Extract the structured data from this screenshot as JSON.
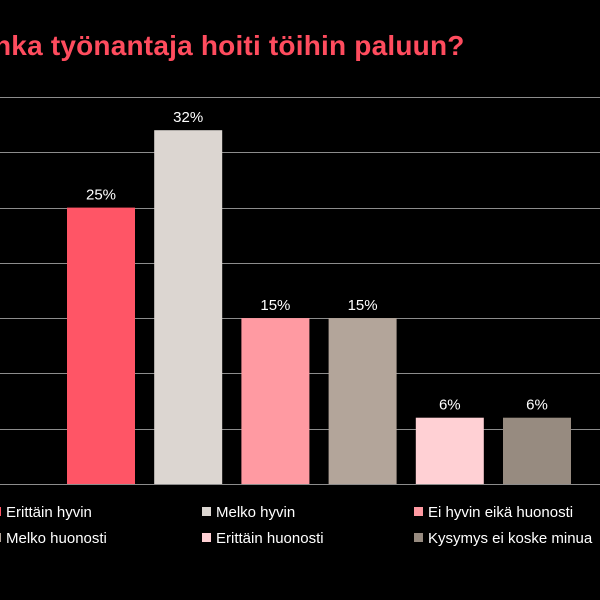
{
  "title": "nka työnantaja hoiti töihin paluun?",
  "colors": {
    "background": "#000000",
    "title": "#ff4c5e",
    "gridline": "#8c8c8c",
    "text": "#ffffff"
  },
  "chart_data": {
    "type": "bar",
    "title": "nka työnantaja hoiti töihin paluun?",
    "xlabel": "",
    "ylabel": "",
    "ylim": [
      0,
      35
    ],
    "grid": true,
    "legend_position": "bottom",
    "value_suffix": "%",
    "series": [
      {
        "name": "Erittäin hyvin",
        "value": 25,
        "label": "25%",
        "color": "#ff5566"
      },
      {
        "name": "Melko hyvin",
        "value": 32,
        "label": "32%",
        "color": "#dcd6d1"
      },
      {
        "name": "Ei hyvin eikä huonosti",
        "value": 15,
        "label": "15%",
        "color": "#ff9aa2"
      },
      {
        "name": "Melko huonosti",
        "value": 15,
        "label": "15%",
        "color": "#b3a59a"
      },
      {
        "name": "Erittäin huonosti",
        "value": 6,
        "label": "6%",
        "color": "#ffd0d4"
      },
      {
        "name": "Kysymys ei koske minua",
        "value": 6,
        "label": "6%",
        "color": "#978b80"
      }
    ],
    "legend": [
      {
        "label": "Erittäin hyvin",
        "color": "#ff5566"
      },
      {
        "label": "Melko hyvin",
        "color": "#dcd6d1"
      },
      {
        "label": "Ei hyvin eikä huonosti",
        "color": "#ff9aa2"
      },
      {
        "label": "Melko huonosti",
        "color": "#b3a59a"
      },
      {
        "label": "Erittäin huonosti",
        "color": "#ffd0d4"
      },
      {
        "label": "Kysymys ei koske minua",
        "color": "#978b80"
      }
    ]
  }
}
